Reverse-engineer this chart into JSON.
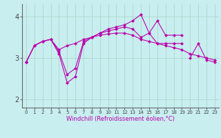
{
  "xlabel": "Windchill (Refroidissement éolien,°C)",
  "background_color": "#c8eef0",
  "grid_color": "#aad8cc",
  "line_color": "#bb00aa",
  "x_values": [
    0,
    1,
    2,
    3,
    4,
    5,
    6,
    7,
    8,
    9,
    10,
    11,
    12,
    13,
    14,
    15,
    16,
    17,
    18,
    19,
    20,
    21,
    22,
    23
  ],
  "line1": [
    2.9,
    3.3,
    3.4,
    3.45,
    3.1,
    2.4,
    2.55,
    3.35,
    3.5,
    3.6,
    3.7,
    3.75,
    3.8,
    3.9,
    4.05,
    3.6,
    3.9,
    3.55,
    3.55,
    3.55,
    null,
    null,
    null,
    null
  ],
  "line2": [
    2.9,
    3.3,
    3.4,
    3.45,
    3.15,
    2.6,
    2.75,
    3.4,
    3.5,
    3.6,
    3.65,
    3.7,
    3.75,
    3.7,
    3.5,
    3.6,
    3.35,
    3.35,
    3.35,
    3.35,
    null,
    null,
    null,
    null
  ],
  "line3": [
    2.9,
    3.3,
    3.4,
    3.45,
    3.2,
    3.3,
    3.35,
    3.45,
    3.5,
    3.55,
    3.58,
    3.6,
    3.6,
    3.55,
    3.45,
    3.4,
    3.35,
    3.3,
    3.25,
    3.2,
    3.1,
    3.05,
    3.0,
    2.95
  ],
  "line4": [
    2.9,
    null,
    null,
    null,
    null,
    null,
    null,
    null,
    null,
    null,
    null,
    null,
    null,
    null,
    null,
    null,
    null,
    null,
    null,
    null,
    3.0,
    3.35,
    2.95,
    2.9
  ],
  "ylim": [
    1.8,
    4.3
  ],
  "yticks": [
    2,
    3,
    4
  ],
  "xlim": [
    -0.5,
    23.5
  ]
}
